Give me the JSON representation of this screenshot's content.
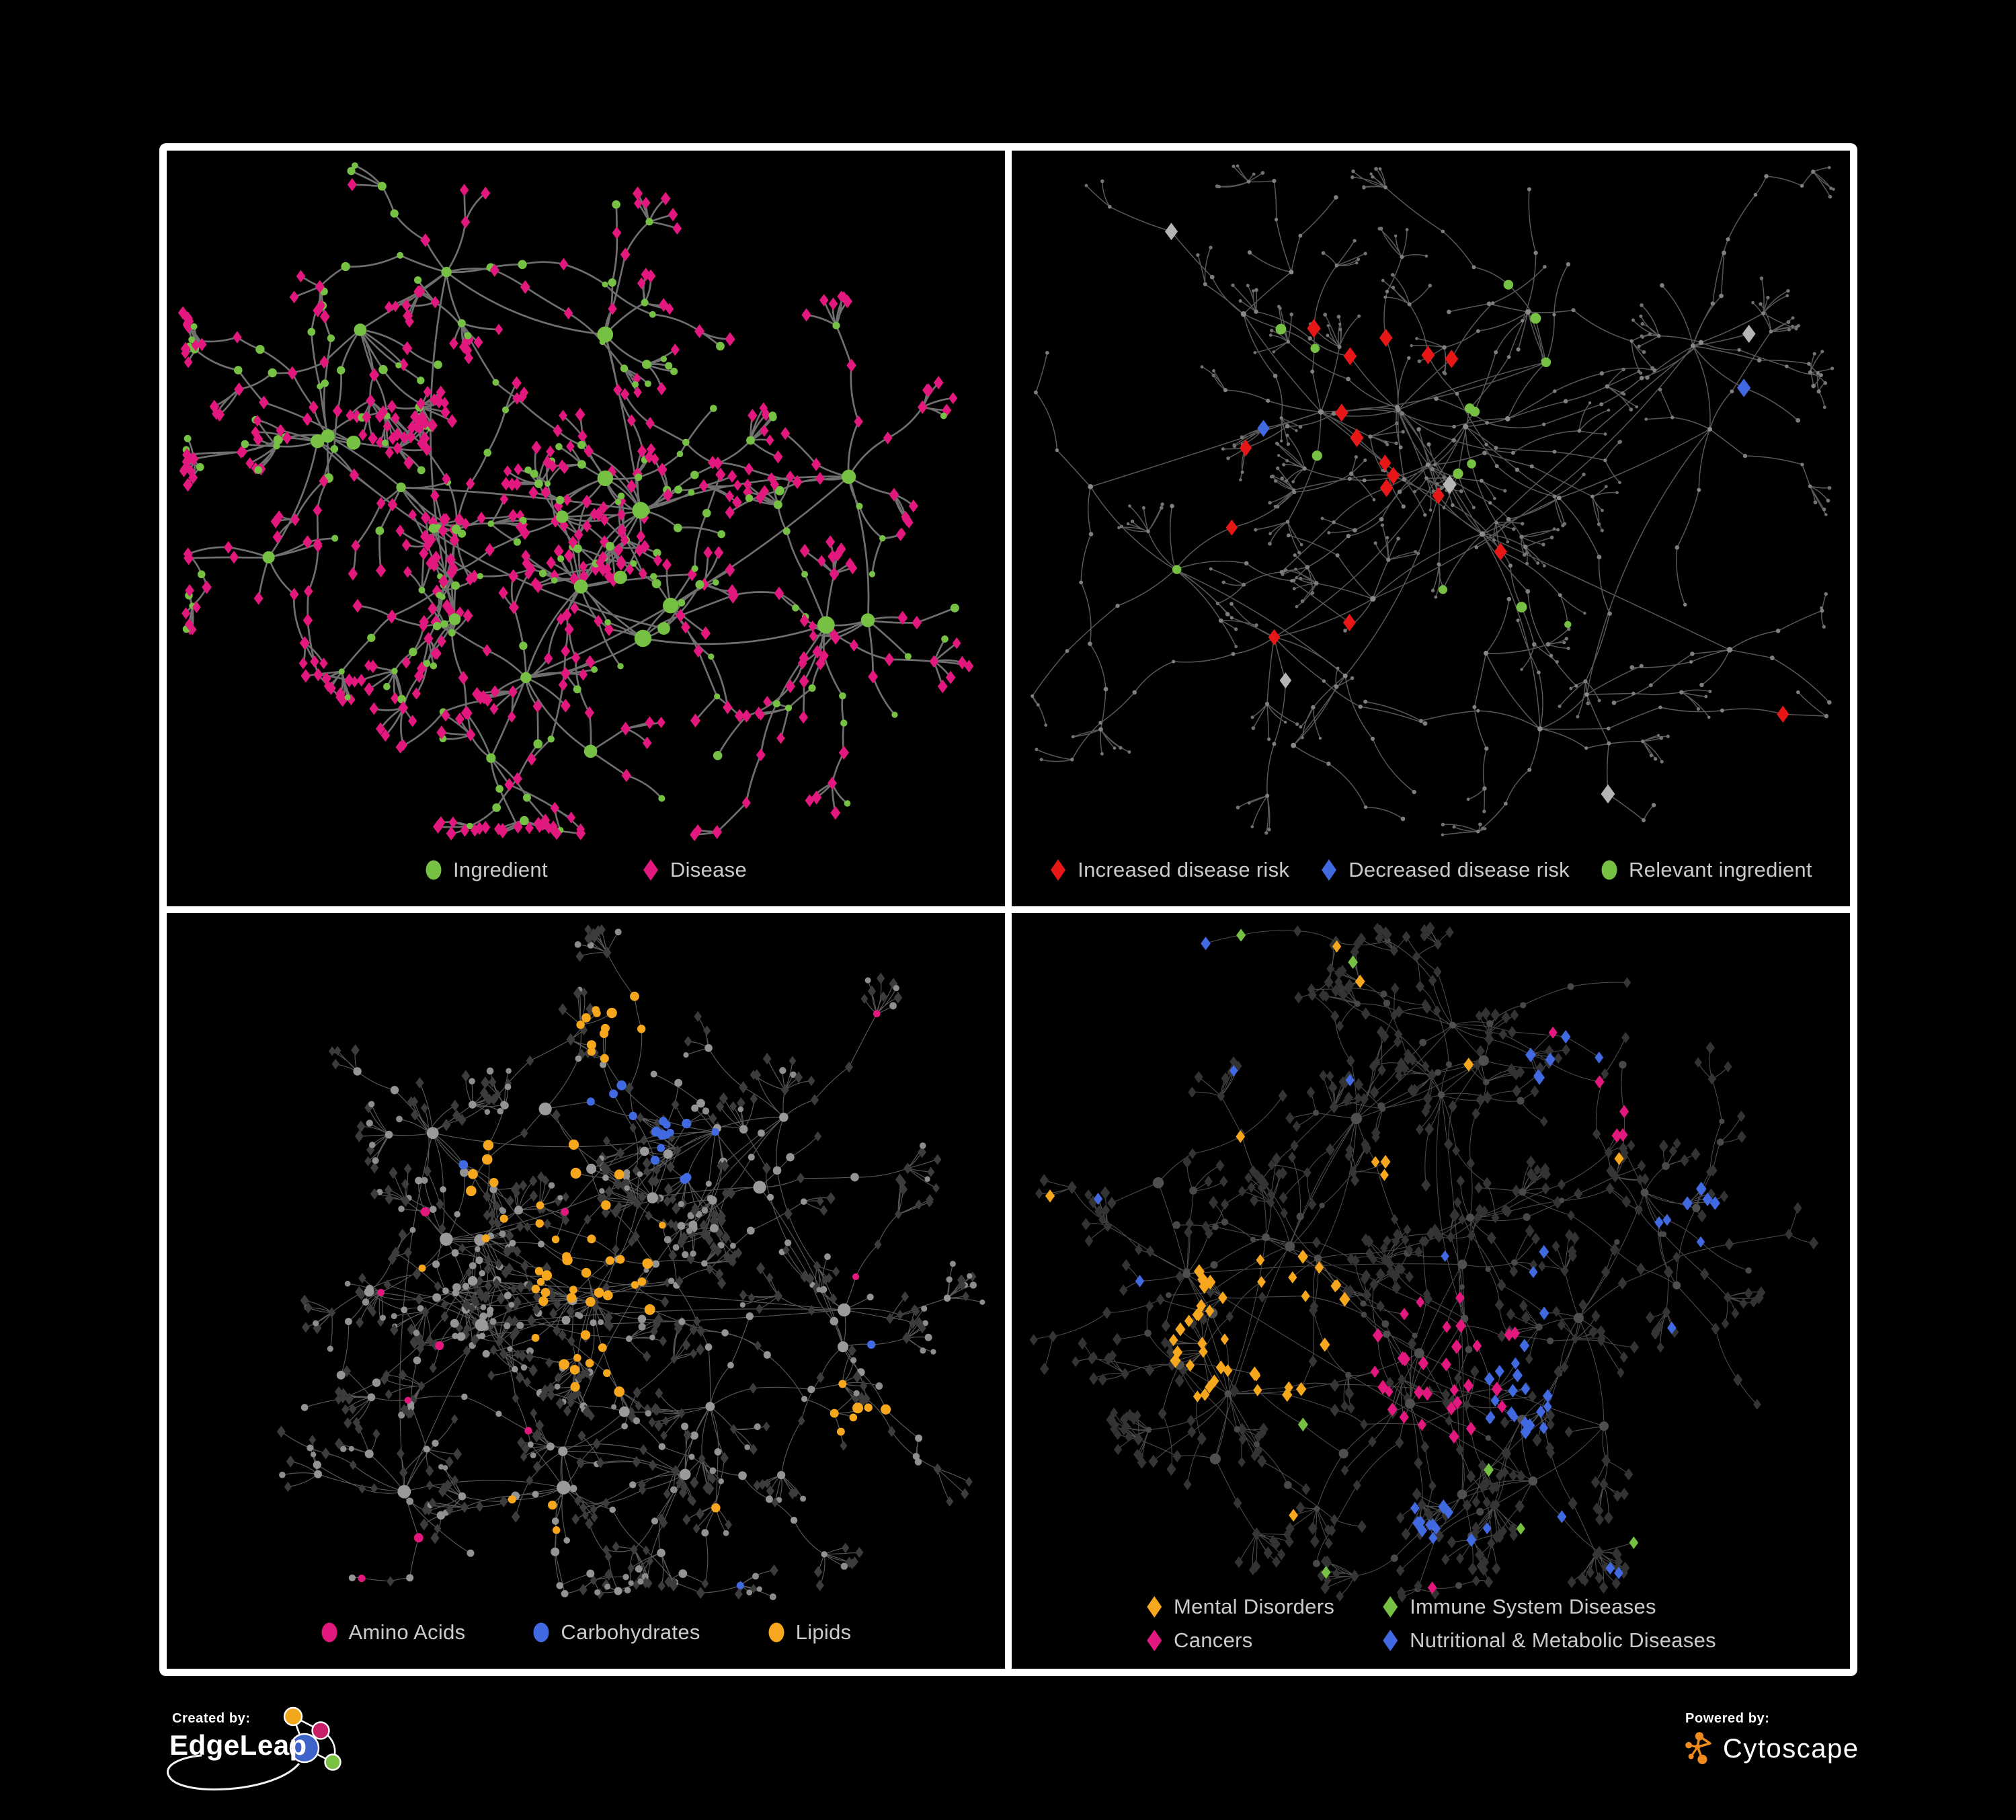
{
  "footer": {
    "created_by_label": "Created by:",
    "created_by_name": "EdgeLeap",
    "powered_by_label": "Powered by:",
    "powered_by_name": "Cytoscape"
  },
  "chart_data": [
    {
      "type": "network",
      "panel": "top-left",
      "description": "Ingredient-disease association network",
      "legend": [
        {
          "label": "Ingredient",
          "shape": "circle",
          "color": "#76c143"
        },
        {
          "label": "Disease",
          "shape": "diamond",
          "color": "#e2187f"
        }
      ],
      "legend_layout": "row",
      "legend_gap": 140,
      "edge": {
        "color": "#757575",
        "width": 2.7,
        "opacity": 0.95
      },
      "layout": {
        "seed": 7,
        "hubs": 24,
        "branchMax": 7,
        "step": [
          38,
          85
        ],
        "fanProb": 0.62,
        "fanMax": 7,
        "spread": 0.4
      },
      "node_style": {
        "hub": [
          {
            "shape": "circle",
            "color": "#76c143",
            "s": [
              7,
              13
            ]
          }
        ],
        "mid": [
          {
            "p": 0.42,
            "shape": "circle",
            "color": "#76c143",
            "s": [
              4.5,
              7
            ]
          },
          {
            "shape": "diamond",
            "color": "#e2187f",
            "s": [
              7,
              8
            ]
          }
        ],
        "leaf": [
          {
            "p": 0.8,
            "shape": "diamond",
            "color": "#e2187f",
            "s": [
              6.5,
              8
            ]
          },
          {
            "shape": "circle",
            "color": "#76c143",
            "s": [
              4.5,
              6.5
            ]
          }
        ]
      }
    },
    {
      "type": "network",
      "panel": "top-right",
      "description": "Disease risk overlay on the same network",
      "legend": [
        {
          "label": "Increased disease risk",
          "shape": "diamond",
          "color": "#e81717"
        },
        {
          "label": "Decreased disease risk",
          "shape": "diamond",
          "color": "#4169e1"
        },
        {
          "label": "Relevant ingredient",
          "shape": "circle",
          "color": "#76c143"
        }
      ],
      "legend_layout": "row",
      "legend_gap": 46,
      "edge": {
        "color": "#5d5d5d",
        "width": 1.5,
        "opacity": 0.95
      },
      "layout": {
        "seed": 23,
        "hubs": 26,
        "branchMax": 6,
        "step": [
          55,
          110
        ],
        "fanProb": 0.55,
        "fanMax": 7,
        "spread": 0.42
      },
      "node_style": {
        "hub": [
          {
            "shape": "circle",
            "color": "#8a8a8a",
            "s": [
              3.2,
              4.2
            ]
          }
        ],
        "mid": [
          {
            "shape": "circle",
            "color": "#7f7f7f",
            "s": [
              2.6,
              3.4
            ]
          }
        ],
        "leaf": [
          {
            "shape": "circle",
            "color": "#737373",
            "s": [
              2.2,
              2.9
            ]
          }
        ]
      },
      "zones": [
        {
          "x": 0.24,
          "y": 0.43,
          "r": 0.075,
          "p": 0.5,
          "kinds": "mh",
          "shape": "diamond",
          "color": "#4169e1",
          "s": [
            9,
            11
          ],
          "big": true
        },
        {
          "x": 0.9,
          "y": 0.36,
          "r": 0.035,
          "p": 0.9,
          "kinds": "mhl",
          "shape": "diamond",
          "color": "#4169e1",
          "s": [
            9,
            11
          ],
          "big": true
        },
        {
          "x": 0.52,
          "y": 0.59,
          "r": 0.04,
          "p": 0.35,
          "kinds": "mh",
          "shape": "diamond",
          "color": "#4169e1",
          "s": [
            9,
            11
          ],
          "big": true
        },
        {
          "x": 0.42,
          "y": 0.48,
          "r": 0.21,
          "p": 0.14,
          "kinds": "mh",
          "shape": "diamond",
          "color": "#e81717",
          "s": [
            9,
            11
          ],
          "big": true
        },
        {
          "x": 0.93,
          "y": 0.85,
          "r": 0.06,
          "p": 0.5,
          "kinds": "mh",
          "shape": "diamond",
          "color": "#e81717",
          "s": [
            9,
            11
          ],
          "big": true
        },
        {
          "x": 0.43,
          "y": 0.45,
          "r": 0.27,
          "p": 0.075,
          "kinds": "mh",
          "shape": "circle",
          "color": "#76c143",
          "s": [
            6.5,
            8
          ],
          "big": true
        }
      ],
      "sprinkle": [
        {
          "p": 0.014,
          "kinds": "mh",
          "shape": "diamond",
          "color": "#b5b5b5",
          "s": [
            9,
            11
          ],
          "big": true
        },
        {
          "p": 0.008,
          "kinds": "l",
          "shape": "circle",
          "color": "#76c143",
          "s": [
            5,
            7
          ],
          "big": true
        }
      ]
    },
    {
      "type": "network",
      "panel": "bottom-left",
      "description": "Ingredient macronutrient classes on the same network",
      "legend": [
        {
          "label": "Amino Acids",
          "shape": "circle",
          "color": "#e2187f"
        },
        {
          "label": "Carbohydrates",
          "shape": "circle",
          "color": "#4169e1"
        },
        {
          "label": "Lipids",
          "shape": "circle",
          "color": "#f6a71d"
        }
      ],
      "legend_layout": "row",
      "legend_gap": 100,
      "edge": {
        "color": "#a3a3a3",
        "width": 1.15,
        "opacity": 0.55
      },
      "layout": {
        "seed": 41,
        "hubs": 26,
        "branchMax": 8,
        "step": [
          40,
          90
        ],
        "fanProb": 0.6,
        "fanMax": 9,
        "spread": 0.41
      },
      "node_style": {
        "hub": [
          {
            "shape": "circle",
            "color": "#9a9a9a",
            "s": [
              6,
              10.5
            ]
          }
        ],
        "mid": [
          {
            "p": 0.5,
            "shape": "circle",
            "color": "#949494",
            "s": [
              4.5,
              6.5
            ]
          },
          {
            "shape": "diamond",
            "color": "#3c3c3c",
            "s": [
              5.5,
              7
            ]
          }
        ],
        "leaf": [
          {
            "p": 0.72,
            "shape": "diamond",
            "color": "#3c3c3c",
            "s": [
              5.5,
              7
            ]
          },
          {
            "shape": "circle",
            "color": "#8d8d8d",
            "s": [
              4,
              5.5
            ]
          }
        ]
      },
      "zones": [
        {
          "x": 0.62,
          "y": 0.34,
          "r": 0.045,
          "p": 0.55,
          "kinds": "hml",
          "shape": "circle",
          "color": "#4169e1",
          "s": [
            5.5,
            7.5
          ],
          "big": true
        },
        {
          "x": 0.52,
          "y": 0.27,
          "r": 0.04,
          "p": 0.4,
          "kinds": "hm",
          "shape": "circle",
          "color": "#4169e1",
          "s": [
            5.5,
            7.5
          ],
          "big": true
        },
        {
          "x": 0.51,
          "y": 0.58,
          "r": 0.1,
          "p": 0.65,
          "kinds": "hm",
          "shape": "circle",
          "color": "#f6a71d",
          "s": [
            5.5,
            8
          ],
          "big": true
        },
        {
          "x": 0.45,
          "y": 0.42,
          "r": 0.1,
          "p": 0.45,
          "kinds": "hm",
          "shape": "circle",
          "color": "#f6a71d",
          "s": [
            5.5,
            8
          ],
          "big": true
        },
        {
          "x": 0.55,
          "y": 0.15,
          "r": 0.06,
          "p": 0.5,
          "kinds": "hml",
          "shape": "circle",
          "color": "#f6a71d",
          "s": [
            5.5,
            8
          ],
          "big": true
        },
        {
          "x": 0.83,
          "y": 0.7,
          "r": 0.045,
          "p": 0.5,
          "kinds": "hml",
          "shape": "circle",
          "color": "#f6a71d",
          "s": [
            5.5,
            8
          ],
          "big": true
        },
        {
          "x": 0.43,
          "y": 0.87,
          "r": 0.04,
          "p": 0.5,
          "kinds": "hml",
          "shape": "circle",
          "color": "#f6a71d",
          "s": [
            5.5,
            8
          ],
          "big": true
        }
      ],
      "sprinkle": [
        {
          "p": 0.045,
          "kinds": "h",
          "shape": "circle",
          "color": "#e2187f",
          "s": [
            5.5,
            7.5
          ],
          "big": true
        },
        {
          "p": 0.02,
          "kinds": "m",
          "shape": "circle",
          "color": "#e2187f",
          "s": [
            5,
            7
          ],
          "big": true
        },
        {
          "p": 0.012,
          "kinds": "m",
          "shape": "circle",
          "color": "#4169e1",
          "s": [
            5,
            7
          ],
          "big": true
        },
        {
          "p": 0.015,
          "kinds": "m",
          "shape": "circle",
          "color": "#f6a71d",
          "s": [
            5,
            7
          ],
          "big": true
        }
      ]
    },
    {
      "type": "network",
      "panel": "bottom-right",
      "description": "Disease classes on the same network",
      "legend": [
        {
          "label": "Mental Disorders",
          "shape": "diamond",
          "color": "#f6a71d"
        },
        {
          "label": "Immune System Diseases",
          "shape": "diamond",
          "color": "#76c143"
        },
        {
          "label": "Cancers",
          "shape": "diamond",
          "color": "#e2187f"
        },
        {
          "label": "Nutritional & Metabolic Diseases",
          "shape": "diamond",
          "color": "#4169e1"
        }
      ],
      "legend_layout": "grid",
      "legend_gap": 70,
      "edge": {
        "color": "#8c8c8c",
        "width": 1.05,
        "opacity": 0.55
      },
      "layout": {
        "seed": 59,
        "hubs": 28,
        "branchMax": 8,
        "step": [
          42,
          92
        ],
        "fanProb": 0.6,
        "fanMax": 9,
        "spread": 0.42
      },
      "node_style": {
        "hub": [
          {
            "shape": "circle",
            "color": "#4f4f4f",
            "s": [
              5,
              8.5
            ]
          }
        ],
        "mid": [
          {
            "p": 0.22,
            "shape": "circle",
            "color": "#484848",
            "s": [
              4,
              6
            ]
          },
          {
            "shape": "diamond",
            "color": "#353535",
            "s": [
              6,
              7.5
            ]
          }
        ],
        "leaf": [
          {
            "shape": "diamond",
            "color": "#333333",
            "s": [
              6,
              7.5
            ]
          }
        ]
      },
      "zones": [
        {
          "x": 0.6,
          "y": 0.68,
          "r": 0.055,
          "p": 0.65,
          "kinds": "ml",
          "shape": "diamond",
          "color": "#4169e1",
          "s": [
            6.5,
            8.5
          ],
          "big": true
        },
        {
          "x": 0.3,
          "y": 0.6,
          "r": 0.11,
          "p": 0.75,
          "kinds": "ml",
          "shape": "diamond",
          "color": "#f6a71d",
          "s": [
            6.5,
            8.5
          ],
          "big": true
        },
        {
          "x": 0.42,
          "y": 0.4,
          "r": 0.05,
          "p": 0.4,
          "kinds": "ml",
          "shape": "diamond",
          "color": "#f6a71d",
          "s": [
            6.5,
            8.5
          ],
          "big": true
        },
        {
          "x": 0.24,
          "y": 0.78,
          "r": 0.04,
          "p": 0.45,
          "kinds": "ml",
          "shape": "diamond",
          "color": "#f6a71d",
          "s": [
            6.5,
            8.5
          ],
          "big": true
        },
        {
          "x": 0.52,
          "y": 0.63,
          "r": 0.1,
          "p": 0.5,
          "kinds": "ml",
          "shape": "diamond",
          "color": "#e2187f",
          "s": [
            6.5,
            8.5
          ],
          "big": true
        },
        {
          "x": 0.72,
          "y": 0.28,
          "r": 0.04,
          "p": 0.6,
          "kinds": "ml",
          "shape": "diamond",
          "color": "#e2187f",
          "s": [
            6.5,
            8.5
          ],
          "big": true
        },
        {
          "x": 0.68,
          "y": 0.2,
          "r": 0.08,
          "p": 0.45,
          "kinds": "ml",
          "shape": "diamond",
          "color": "#4169e1",
          "s": [
            6.5,
            8.5
          ],
          "big": true
        },
        {
          "x": 0.8,
          "y": 0.43,
          "r": 0.05,
          "p": 0.5,
          "kinds": "ml",
          "shape": "diamond",
          "color": "#4169e1",
          "s": [
            6.5,
            8.5
          ],
          "big": true
        },
        {
          "x": 0.52,
          "y": 0.88,
          "r": 0.05,
          "p": 0.4,
          "kinds": "ml",
          "shape": "diamond",
          "color": "#4169e1",
          "s": [
            6.5,
            8.5
          ],
          "big": true
        },
        {
          "x": 0.3,
          "y": 0.08,
          "r": 0.05,
          "p": 0.4,
          "kinds": "ml",
          "shape": "diamond",
          "color": "#4169e1",
          "s": [
            6.5,
            8.5
          ],
          "big": true
        }
      ],
      "sprinkle": [
        {
          "p": 0.012,
          "kinds": "ml",
          "shape": "diamond",
          "color": "#76c143",
          "s": [
            6.5,
            8
          ],
          "big": true
        },
        {
          "p": 0.015,
          "kinds": "ml",
          "shape": "diamond",
          "color": "#4169e1",
          "s": [
            6.5,
            8
          ],
          "big": true
        },
        {
          "p": 0.01,
          "kinds": "ml",
          "shape": "diamond",
          "color": "#f6a71d",
          "s": [
            6.5,
            8
          ],
          "big": true
        },
        {
          "p": 0.006,
          "kinds": "ml",
          "shape": "diamond",
          "color": "#e2187f",
          "s": [
            6.5,
            8
          ],
          "big": true
        }
      ]
    }
  ]
}
